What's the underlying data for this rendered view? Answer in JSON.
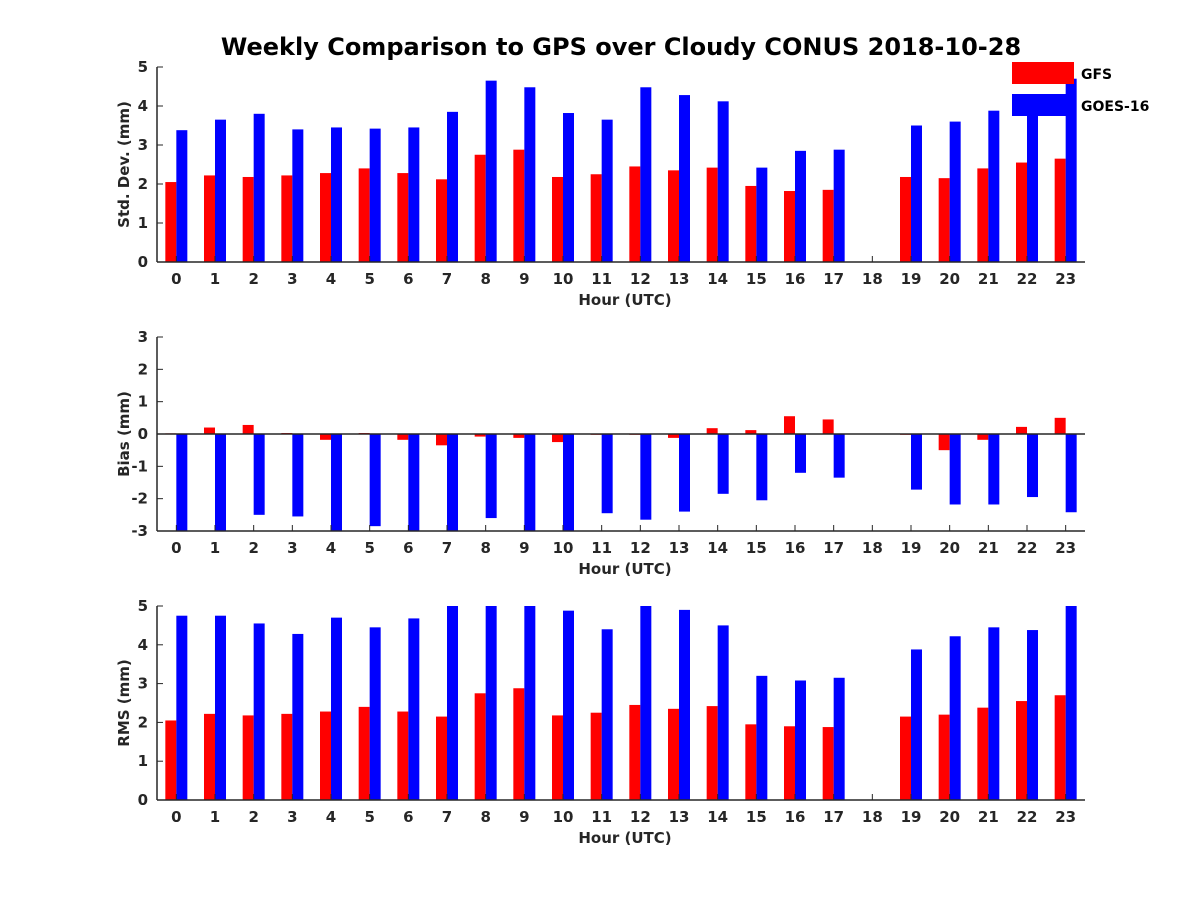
{
  "figure": {
    "title": "Weekly Comparison to GPS over Cloudy CONUS 2018-10-28"
  },
  "colors": {
    "GFS": "#ff0000",
    "GOES-16": "#0000ff",
    "axis": "#262626"
  },
  "chart_data": [
    {
      "type": "bar",
      "ylabel": "Std. Dev. (mm)",
      "xlabel": "Hour (UTC)",
      "ylim": [
        0,
        5
      ],
      "yticks": [
        0,
        1,
        2,
        3,
        4,
        5
      ],
      "categories": [
        "0",
        "1",
        "2",
        "3",
        "4",
        "5",
        "6",
        "7",
        "8",
        "9",
        "10",
        "11",
        "12",
        "13",
        "14",
        "15",
        "16",
        "17",
        "18",
        "19",
        "20",
        "21",
        "22",
        "23"
      ],
      "legend": {
        "placement": "top-right",
        "entries": [
          "GFS",
          "GOES-16"
        ]
      },
      "series": [
        {
          "name": "GFS",
          "values": [
            2.05,
            2.22,
            2.18,
            2.22,
            2.28,
            2.4,
            2.28,
            2.12,
            2.75,
            2.88,
            2.18,
            2.25,
            2.45,
            2.35,
            2.42,
            1.95,
            1.82,
            1.85,
            null,
            2.18,
            2.15,
            2.4,
            2.55,
            2.65
          ]
        },
        {
          "name": "GOES-16",
          "values": [
            3.38,
            3.65,
            3.8,
            3.4,
            3.45,
            3.42,
            3.45,
            3.85,
            4.65,
            4.48,
            3.82,
            3.65,
            4.48,
            4.28,
            4.12,
            2.42,
            2.85,
            2.88,
            null,
            3.5,
            3.6,
            3.88,
            3.9,
            4.7
          ]
        }
      ]
    },
    {
      "type": "bar",
      "ylabel": "Bias (mm)",
      "xlabel": "Hour (UTC)",
      "ylim": [
        -3,
        3
      ],
      "yticks": [
        -3,
        -2,
        -1,
        0,
        1,
        2,
        3
      ],
      "categories": [
        "0",
        "1",
        "2",
        "3",
        "4",
        "5",
        "6",
        "7",
        "8",
        "9",
        "10",
        "11",
        "12",
        "13",
        "14",
        "15",
        "16",
        "17",
        "18",
        "19",
        "20",
        "21",
        "22",
        "23"
      ],
      "series": [
        {
          "name": "GFS",
          "values": [
            0.02,
            0.2,
            0.28,
            0.03,
            -0.18,
            0.03,
            -0.18,
            -0.35,
            -0.08,
            -0.12,
            -0.25,
            0.0,
            0.0,
            -0.12,
            0.18,
            0.12,
            0.55,
            0.45,
            null,
            0.0,
            -0.5,
            -0.18,
            0.22,
            0.5
          ]
        },
        {
          "name": "GOES-16",
          "values": [
            -3.0,
            -3.0,
            -2.5,
            -2.55,
            -3.0,
            -2.85,
            -3.0,
            -3.0,
            -2.6,
            -3.0,
            -3.0,
            -2.45,
            -2.65,
            -2.4,
            -1.85,
            -2.05,
            -1.2,
            -1.35,
            null,
            -1.72,
            -2.18,
            -2.18,
            -1.95,
            -2.42
          ]
        }
      ]
    },
    {
      "type": "bar",
      "ylabel": "RMS (mm)",
      "xlabel": "Hour (UTC)",
      "ylim": [
        0,
        5
      ],
      "yticks": [
        0,
        1,
        2,
        3,
        4,
        5
      ],
      "categories": [
        "0",
        "1",
        "2",
        "3",
        "4",
        "5",
        "6",
        "7",
        "8",
        "9",
        "10",
        "11",
        "12",
        "13",
        "14",
        "15",
        "16",
        "17",
        "18",
        "19",
        "20",
        "21",
        "22",
        "23"
      ],
      "series": [
        {
          "name": "GFS",
          "values": [
            2.05,
            2.22,
            2.18,
            2.22,
            2.28,
            2.4,
            2.28,
            2.15,
            2.75,
            2.88,
            2.18,
            2.25,
            2.45,
            2.35,
            2.42,
            1.95,
            1.9,
            1.88,
            null,
            2.15,
            2.2,
            2.38,
            2.55,
            2.7
          ]
        },
        {
          "name": "GOES-16",
          "values": [
            4.75,
            4.75,
            4.55,
            4.28,
            4.7,
            4.45,
            4.68,
            5.0,
            5.0,
            5.0,
            4.88,
            4.4,
            5.0,
            4.9,
            4.5,
            3.2,
            3.08,
            3.15,
            null,
            3.88,
            4.22,
            4.45,
            4.38,
            5.0
          ]
        }
      ]
    }
  ]
}
